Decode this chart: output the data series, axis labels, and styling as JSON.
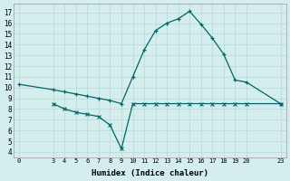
{
  "line1_x": [
    0,
    3,
    4,
    5,
    6,
    7,
    8,
    9,
    10,
    11,
    12,
    13,
    14,
    15,
    16,
    17,
    18,
    19,
    20,
    23
  ],
  "line1_y": [
    10.3,
    9.8,
    9.6,
    9.4,
    9.2,
    9.0,
    8.8,
    8.5,
    11.0,
    13.5,
    15.3,
    16.0,
    16.4,
    17.1,
    15.9,
    14.6,
    13.1,
    10.7,
    10.5,
    8.5
  ],
  "line2_x": [
    3,
    4,
    5,
    6,
    7,
    8,
    9,
    10,
    11,
    12,
    13,
    14,
    15,
    16,
    17,
    18,
    19,
    20,
    23
  ],
  "line2_y": [
    8.5,
    8.0,
    7.7,
    7.5,
    7.3,
    6.5,
    4.3,
    8.5,
    8.5,
    8.5,
    8.5,
    8.5,
    8.5,
    8.5,
    8.5,
    8.5,
    8.5,
    8.5,
    8.5
  ],
  "line_color": "#006666",
  "bg_color": "#d4eeee",
  "grid_color": "#b8d8d8",
  "xlabel": "Humidex (Indice chaleur)",
  "ylim": [
    3.5,
    17.8
  ],
  "xlim": [
    -0.5,
    23.5
  ],
  "yticks": [
    4,
    5,
    6,
    7,
    8,
    9,
    10,
    11,
    12,
    13,
    14,
    15,
    16,
    17
  ],
  "xticks": [
    0,
    3,
    4,
    5,
    6,
    7,
    8,
    9,
    10,
    11,
    12,
    13,
    14,
    15,
    16,
    17,
    18,
    19,
    20,
    23
  ]
}
